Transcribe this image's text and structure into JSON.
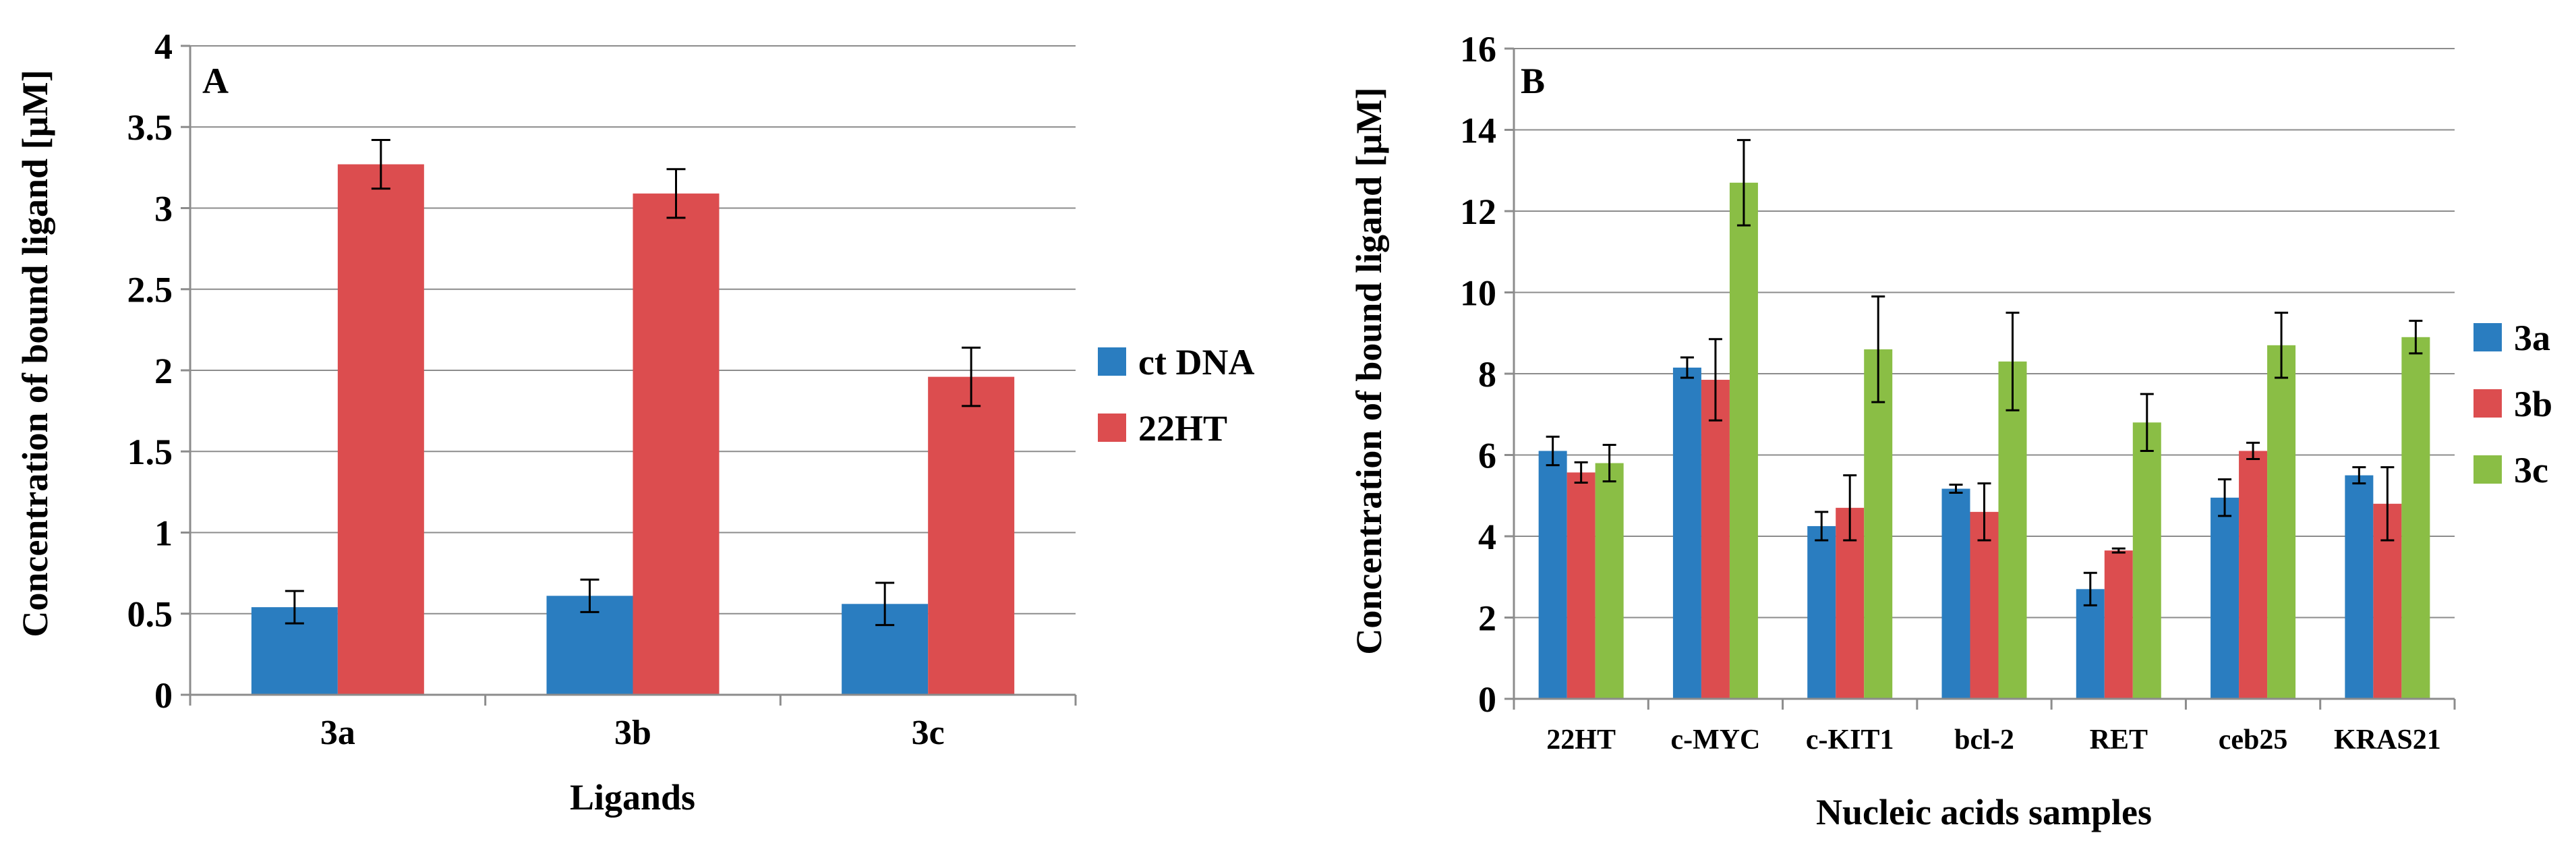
{
  "colors": {
    "blue": "#2a7dc0",
    "red": "#dc4d4f",
    "green": "#8abe45",
    "grid": "#8c8c8c",
    "axis": "#8c8c8c",
    "text": "#000000"
  },
  "chart_data": [
    {
      "type": "bar",
      "panel_label": "A",
      "title": "",
      "xlabel": "Ligands",
      "ylabel": "Concentration of bound ligand [µM]",
      "ylim": [
        0,
        4
      ],
      "yticks": [
        0,
        0.5,
        1,
        1.5,
        2,
        2.5,
        3,
        3.5,
        4
      ],
      "ytick_labels": [
        "0",
        "0.5",
        "1",
        "1.5",
        "2",
        "2.5",
        "3",
        "3.5",
        "4"
      ],
      "grid": true,
      "legend_position": "right",
      "categories": [
        "3a",
        "3b",
        "3c"
      ],
      "series": [
        {
          "name": "ct DNA",
          "color": "#2a7dc0",
          "values": [
            0.54,
            0.61,
            0.56
          ],
          "errors": [
            0.1,
            0.1,
            0.13
          ]
        },
        {
          "name": "22HT",
          "color": "#dc4d4f",
          "values": [
            3.27,
            3.09,
            1.96
          ],
          "errors": [
            0.15,
            0.15,
            0.18
          ]
        }
      ]
    },
    {
      "type": "bar",
      "panel_label": "B",
      "title": "",
      "xlabel": "Nucleic acids samples",
      "ylabel": "Concentration of bound ligand [µM]",
      "ylim": [
        0,
        16
      ],
      "yticks": [
        0,
        2,
        4,
        6,
        8,
        10,
        12,
        14,
        16
      ],
      "ytick_labels": [
        "0",
        "2",
        "4",
        "6",
        "8",
        "10",
        "12",
        "14",
        "16"
      ],
      "grid": true,
      "legend_position": "right",
      "categories": [
        "22HT",
        "c-MYC",
        "c-KIT1",
        "bcl-2",
        "RET",
        "ceb25",
        "KRAS21"
      ],
      "series": [
        {
          "name": "3a",
          "color": "#2a7dc0",
          "values": [
            6.1,
            8.15,
            4.25,
            5.17,
            2.7,
            4.95,
            5.5
          ],
          "errors": [
            0.35,
            0.25,
            0.35,
            0.1,
            0.4,
            0.45,
            0.2
          ]
        },
        {
          "name": "3b",
          "color": "#dc4d4f",
          "values": [
            5.57,
            7.85,
            4.7,
            4.6,
            3.65,
            6.1,
            4.8
          ],
          "errors": [
            0.25,
            1.0,
            0.8,
            0.7,
            0.05,
            0.2,
            0.9
          ]
        },
        {
          "name": "3c",
          "color": "#8abe45",
          "values": [
            5.8,
            12.7,
            8.6,
            8.3,
            6.8,
            8.7,
            8.9
          ],
          "errors": [
            0.45,
            1.05,
            1.3,
            1.2,
            0.7,
            0.8,
            0.4
          ]
        }
      ]
    }
  ]
}
